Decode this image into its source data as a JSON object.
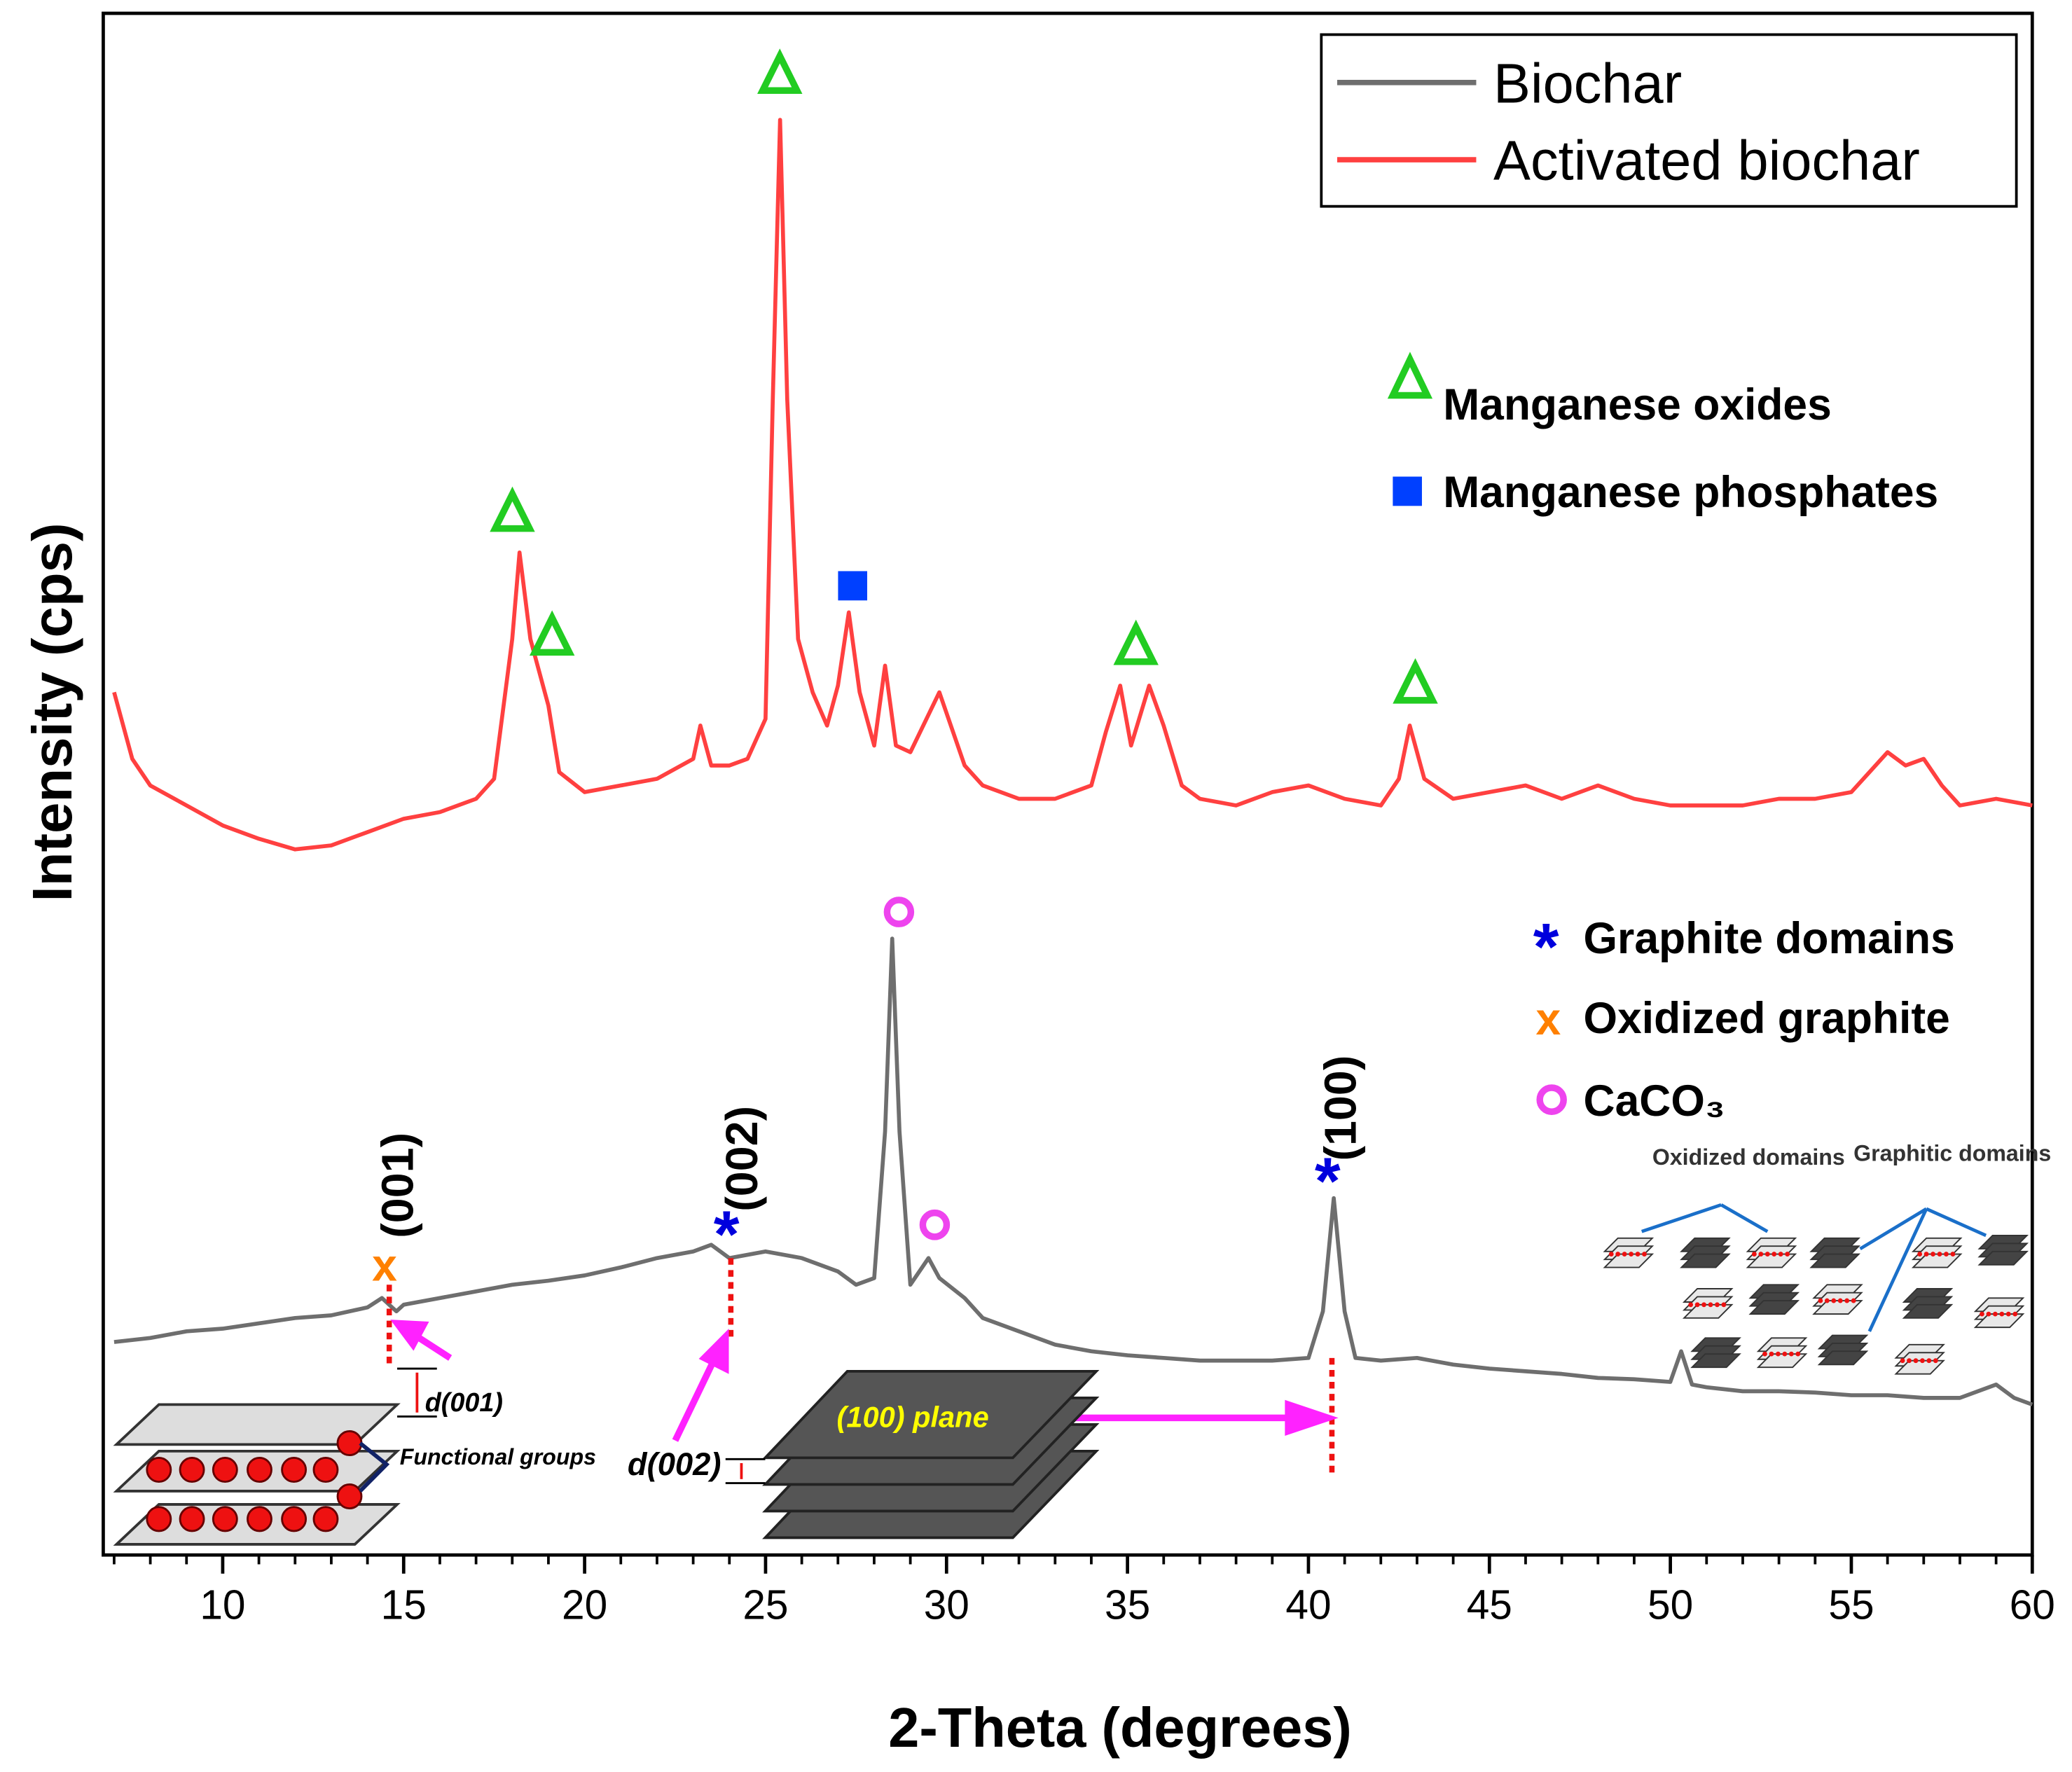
{
  "chart_data": {
    "type": "line",
    "xlabel": "2-Theta (degrees)",
    "ylabel": "Intensity (cps)",
    "xlim": [
      6.7,
      60
    ],
    "xticks": [
      10,
      15,
      20,
      25,
      30,
      35,
      40,
      45,
      50,
      55,
      60
    ],
    "x_minor_step": 1,
    "ylim": [
      0,
      1158
    ],
    "grid": false,
    "legend": "upper right",
    "series": [
      {
        "name": "Biochar",
        "color": "#6e6e6e",
        "x": [
          7,
          8,
          9,
          10,
          11,
          12,
          13,
          14,
          14.4,
          14.8,
          15,
          16,
          17,
          18,
          19,
          20,
          21,
          22,
          23,
          23.5,
          24,
          25,
          26,
          27,
          27.5,
          28,
          28.3,
          28.5,
          28.7,
          29,
          29.5,
          29.8,
          30.5,
          31,
          32,
          33,
          34,
          35,
          36,
          37,
          38,
          39,
          40,
          40.4,
          40.7,
          41,
          41.3,
          42,
          43,
          44,
          45,
          46,
          47,
          48,
          49,
          50,
          50.3,
          50.6,
          51,
          52,
          53,
          54,
          55,
          56,
          57,
          58,
          59,
          59.5,
          60
        ],
        "values": [
          160,
          163,
          168,
          170,
          174,
          178,
          180,
          186,
          193,
          183,
          188,
          193,
          198,
          203,
          206,
          210,
          216,
          223,
          228,
          233,
          223,
          228,
          223,
          213,
          203,
          208,
          318,
          463,
          318,
          203,
          223,
          208,
          193,
          178,
          168,
          158,
          153,
          150,
          148,
          146,
          146,
          146,
          148,
          183,
          268,
          183,
          148,
          146,
          148,
          143,
          140,
          138,
          136,
          133,
          132,
          130,
          153,
          128,
          126,
          123,
          123,
          122,
          120,
          120,
          118,
          118,
          128,
          118,
          113
        ]
      },
      {
        "name": "Activated biochar",
        "color": "#ff4040",
        "x": [
          7,
          7.5,
          8,
          9,
          10,
          11,
          12,
          13,
          14,
          15,
          16,
          17,
          17.5,
          18,
          18.2,
          18.5,
          19,
          19.3,
          20,
          21,
          22,
          23,
          23.2,
          23.5,
          24,
          24.5,
          25,
          25.2,
          25.4,
          25.6,
          25.9,
          26.3,
          26.7,
          27,
          27.3,
          27.6,
          28,
          28.3,
          28.6,
          29,
          29.8,
          30.5,
          31,
          32,
          33,
          34,
          34.4,
          34.8,
          35.1,
          35.6,
          36,
          36.5,
          37,
          38,
          39,
          40,
          41,
          42,
          42.5,
          42.8,
          43.2,
          44,
          45,
          46,
          47,
          48,
          49,
          50,
          51,
          52,
          53,
          54,
          55,
          56,
          56.5,
          57,
          57.5,
          58,
          59,
          60
        ],
        "values": [
          648,
          598,
          578,
          563,
          548,
          538,
          530,
          533,
          543,
          553,
          558,
          568,
          583,
          688,
          753,
          688,
          638,
          588,
          573,
          578,
          583,
          598,
          623,
          593,
          593,
          598,
          628,
          868,
          1078,
          868,
          688,
          648,
          623,
          653,
          708,
          648,
          608,
          668,
          608,
          603,
          648,
          593,
          578,
          568,
          568,
          578,
          618,
          653,
          608,
          653,
          623,
          578,
          568,
          563,
          573,
          578,
          568,
          563,
          583,
          623,
          583,
          568,
          573,
          578,
          568,
          578,
          568,
          563,
          563,
          563,
          568,
          568,
          573,
          603,
          593,
          598,
          578,
          563,
          568,
          563
        ]
      }
    ],
    "marker_legend": [
      "Manganese oxides",
      "Manganese phosphates",
      "Graphite domains",
      "Oxidized graphite",
      "CaCO₃"
    ],
    "peak_labels": [
      "(001)",
      "(002)",
      "(100)"
    ],
    "inset_labels": {
      "d001": "d(001)",
      "functional": "Functional groups",
      "d002": "d(002)",
      "plane": "(100) plane",
      "oxidized": "Oxidized domains",
      "graphitic": "Graphitic domains"
    }
  }
}
